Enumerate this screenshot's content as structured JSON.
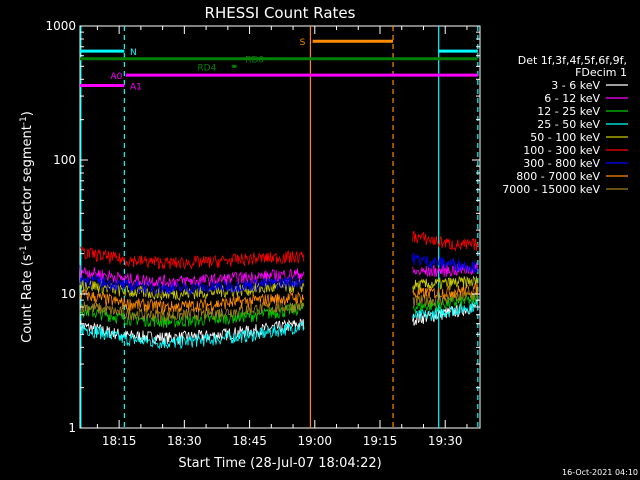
{
  "chart_data": {
    "type": "line",
    "title": "RHESSI Count Rates",
    "xlabel": "Start Time (28-Jul-07 18:04:22)",
    "ylabel": "Count Rate (s⁻¹ detector segment⁻¹)",
    "ylog": true,
    "ylim": [
      1,
      1000
    ],
    "xlim_min": [
      6.0,
      98.0
    ],
    "x_ticks": [
      {
        "min": 15,
        "label": "18:15"
      },
      {
        "min": 30,
        "label": "18:30"
      },
      {
        "min": 45,
        "label": "18:45"
      },
      {
        "min": 60,
        "label": "19:00"
      },
      {
        "min": 75,
        "label": "19:15"
      },
      {
        "min": 90,
        "label": "19:30"
      }
    ],
    "y_ticks": [
      {
        "v": 1,
        "label": "1"
      },
      {
        "v": 10,
        "label": "10"
      },
      {
        "v": 100,
        "label": "100"
      },
      {
        "v": 1000,
        "label": "1000"
      }
    ],
    "legend": {
      "header": [
        "Det 1f,3f,4f,5f,6f,9f,",
        "FDecim 1"
      ],
      "position": "right"
    },
    "series": [
      {
        "name": "3 - 6 keV",
        "color": "#ffffff",
        "seg1": [
          5.8,
          4.9,
          4.7,
          4.9,
          5.4,
          6.0
        ],
        "seg2": [
          6.5,
          6.8,
          7.2,
          7.6,
          8.2
        ]
      },
      {
        "name": "6 - 12 keV",
        "color": "#ff00ff",
        "seg1": [
          15.0,
          13.0,
          12.4,
          12.8,
          13.5,
          14.2
        ],
        "seg2": [
          14.5,
          14.8,
          15.0,
          15.2,
          15.5
        ]
      },
      {
        "name": "12 - 25 keV",
        "color": "#00c800",
        "seg1": [
          7.6,
          6.6,
          6.2,
          6.5,
          7.0,
          7.8
        ],
        "seg2": [
          8.0,
          8.2,
          8.5,
          8.8,
          9.2
        ]
      },
      {
        "name": "25 - 50 keV",
        "color": "#00ffff",
        "seg1": [
          5.6,
          4.6,
          4.3,
          4.6,
          5.0,
          5.8
        ],
        "seg2": [
          6.8,
          7.0,
          7.4,
          7.8,
          8.3
        ]
      },
      {
        "name": "50 - 100 keV",
        "color": "#c8c800",
        "seg1": [
          12.0,
          10.5,
          10.0,
          10.4,
          11.0,
          11.5
        ],
        "seg2": [
          11.5,
          11.8,
          12.0,
          12.2,
          12.5
        ]
      },
      {
        "name": "100 - 300 keV",
        "color": "#ff0000",
        "seg1": [
          20.5,
          18.0,
          17.0,
          17.5,
          18.5,
          19.0
        ],
        "seg2": [
          27.0,
          25.5,
          24.0,
          23.0,
          23.5
        ]
      },
      {
        "name": "300 - 800 keV",
        "color": "#0000ff",
        "seg1": [
          13.0,
          11.5,
          11.0,
          11.2,
          11.8,
          12.5
        ],
        "seg2": [
          18.5,
          17.5,
          17.0,
          16.5,
          16.0
        ]
      },
      {
        "name": "800 - 7000 keV",
        "color": "#ff8c00",
        "seg1": [
          10.0,
          8.5,
          8.0,
          8.4,
          9.0,
          9.5
        ],
        "seg2": [
          10.0,
          10.2,
          10.4,
          10.6,
          11.0
        ]
      },
      {
        "name": "7000 - 15000 keV",
        "color": "#a0821e",
        "seg1": [
          8.2,
          7.2,
          6.9,
          7.2,
          7.8,
          8.2
        ],
        "seg2": [
          8.8,
          9.0,
          9.2,
          9.5,
          9.8
        ]
      }
    ],
    "segments": {
      "seg1_range": [
        6.0,
        57.5
      ],
      "seg2_range": [
        82.5,
        97.5
      ]
    },
    "flag_bars": [
      {
        "label": "N",
        "color": "#00ffff",
        "y": 650,
        "ranges": [
          [
            6.0,
            16.2
          ],
          [
            88.5,
            97.5
          ]
        ],
        "label_at": 17.5
      },
      {
        "label": "S",
        "color": "#ff8c00",
        "y": 770,
        "ranges": [
          [
            59.5,
            78.0
          ]
        ],
        "label_at": 56.5
      },
      {
        "label": "RD0",
        "color": "#008000",
        "y": 570,
        "ranges": [
          [
            6.0,
            97.5
          ]
        ],
        "label_at": 44.0
      },
      {
        "label": "RD4",
        "color": "#008000",
        "y": 500,
        "ranges": [
          [
            41.0,
            42.0
          ]
        ],
        "label_at": 33.0
      },
      {
        "label": "A0",
        "color": "#ff00ff",
        "y": 430,
        "ranges": [
          [
            16.5,
            97.5
          ]
        ],
        "label_at": 13.0
      },
      {
        "label": "A1",
        "color": "#ff00ff",
        "y": 360,
        "ranges": [
          [
            6.0,
            16.2
          ]
        ],
        "label_at": 17.5
      }
    ],
    "vlines": [
      {
        "min": 6.2,
        "color": "#00ffff",
        "style": "solid"
      },
      {
        "min": 16.2,
        "color": "#00ffff",
        "style": "dashed"
      },
      {
        "min": 59.0,
        "color": "#ff8c00",
        "style": "solid"
      },
      {
        "min": 78.0,
        "color": "#ff8c00",
        "style": "dashed"
      },
      {
        "min": 88.5,
        "color": "#00ffff",
        "style": "solid"
      },
      {
        "min": 97.5,
        "color": "#00ffff",
        "style": "dashed"
      }
    ]
  },
  "footer": {
    "timestamp": "16-Oct-2021 04:10"
  }
}
